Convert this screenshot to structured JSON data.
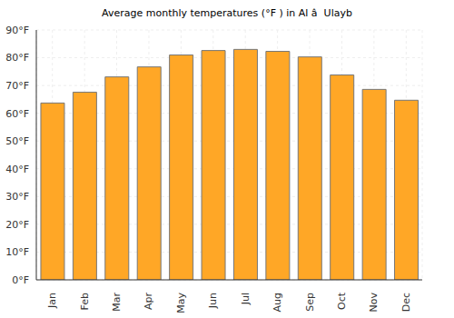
{
  "chart_data": {
    "type": "bar",
    "title": "Average monthly temperatures (°F ) in Al â  Ulayb",
    "categories": [
      "Jan",
      "Feb",
      "Mar",
      "Apr",
      "May",
      "Jun",
      "Jul",
      "Aug",
      "Sep",
      "Oct",
      "Nov",
      "Dec"
    ],
    "values": [
      63.7,
      67.6,
      73.1,
      76.7,
      81,
      82.6,
      83,
      82.3,
      80.3,
      73.8,
      68.6,
      64.7
    ],
    "color": "#ffa726",
    "ylim": [
      0,
      90
    ],
    "yticks": [
      {
        "value": 0,
        "label": "0°F"
      },
      {
        "value": 10,
        "label": "10°F"
      },
      {
        "value": 20,
        "label": "20°F"
      },
      {
        "value": 30,
        "label": "30°F"
      },
      {
        "value": 40,
        "label": "40°F"
      },
      {
        "value": 50,
        "label": "50°F"
      },
      {
        "value": 60,
        "label": "60°F"
      },
      {
        "value": 70,
        "label": "70°F"
      },
      {
        "value": 80,
        "label": "80°F"
      },
      {
        "value": 90,
        "label": "90°F"
      }
    ],
    "grid": true
  }
}
